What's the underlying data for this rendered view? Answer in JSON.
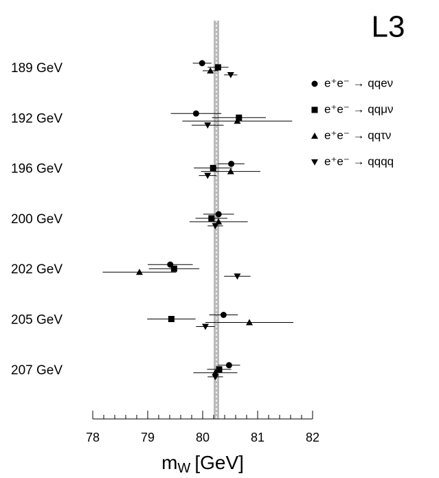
{
  "chart_data": {
    "type": "errorbar",
    "title": "L3",
    "x_label": [
      "m",
      "W",
      "[GeV]"
    ],
    "categories": [
      "189 GeV",
      "192 GeV",
      "196 GeV",
      "200 GeV",
      "202 GeV",
      "205 GeV",
      "207 GeV"
    ],
    "xlim": [
      78,
      82
    ],
    "xticks": [
      78,
      79,
      80,
      81,
      82
    ],
    "minor_xticks": [
      78.2,
      78.4,
      78.6,
      78.8,
      79.2,
      79.4,
      79.6,
      79.8,
      80.2,
      80.4,
      80.6,
      80.8,
      81.2,
      81.4,
      81.6,
      81.8
    ],
    "band": [
      80.2,
      80.3
    ],
    "band_center": 80.25,
    "band_color": "#bbbbbb",
    "series": [
      {
        "name": "e⁺e⁻ → qqeν",
        "marker": "circle",
        "color": "#000000",
        "values": [
          79.99,
          79.88,
          80.52,
          80.29,
          79.41,
          80.38,
          80.48
        ],
        "errors": [
          0.17,
          0.46,
          0.24,
          0.28,
          0.41,
          0.26,
          0.2
        ]
      },
      {
        "name": "e⁺e⁻ → qqμν",
        "marker": "square",
        "color": "#000000",
        "values": [
          80.28,
          80.66,
          80.19,
          80.16,
          79.48,
          79.43,
          80.3
        ],
        "errors": [
          0.19,
          0.49,
          0.35,
          0.29,
          0.46,
          0.44,
          0.22
        ]
      },
      {
        "name": "e⁺e⁻ → qqτν",
        "marker": "triangle-up",
        "color": "#000000",
        "values": [
          80.14,
          80.63,
          80.51,
          80.29,
          78.85,
          80.85,
          80.23
        ],
        "errors": [
          0.14,
          1.0,
          0.54,
          0.53,
          0.67,
          0.8,
          0.4
        ]
      },
      {
        "name": "e⁺e⁻ → qqqq",
        "marker": "triangle-down",
        "color": "#000000",
        "values": [
          80.51,
          80.09,
          80.09,
          80.23,
          80.63,
          80.05,
          80.23
        ],
        "errors": [
          0.12,
          0.29,
          0.16,
          0.14,
          0.24,
          0.17,
          0.14
        ]
      }
    ]
  }
}
